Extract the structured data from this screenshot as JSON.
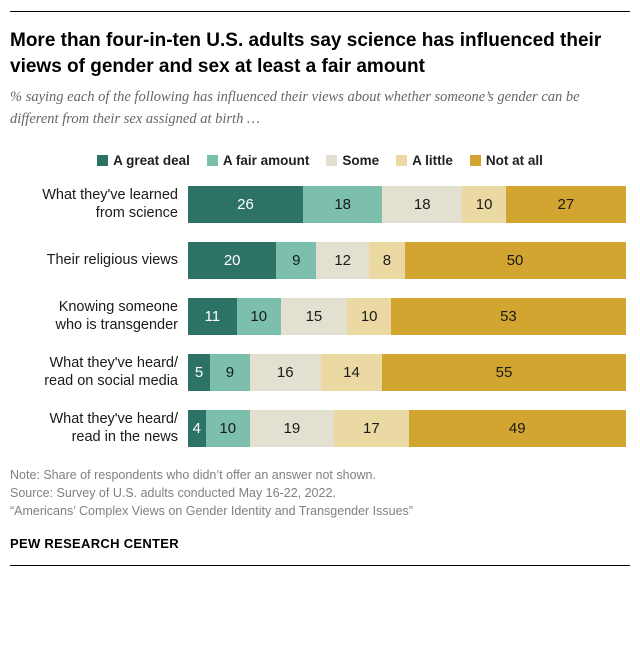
{
  "header": {
    "title": "More than four-in-ten U.S. adults say science has influenced their views of gender and sex at least a fair amount",
    "subtitle": "% saying each of the following has influenced their views about whether someone’s gender can be different from their sex assigned at birth …"
  },
  "chart_data": {
    "type": "bar",
    "stacked": true,
    "orientation": "horizontal",
    "unit": "%",
    "value_labels": "inside",
    "legend_position": "top",
    "categories": [
      "What they've learned from science",
      "Their religious views",
      "Knowing someone who is transgender",
      "What they've heard/ read on social media",
      "What they've heard/ read in the news"
    ],
    "category_lines": [
      [
        "What they've learned",
        "from science"
      ],
      [
        "Their religious views"
      ],
      [
        "Knowing someone",
        "who is transgender"
      ],
      [
        "What they've heard/",
        "read on social media"
      ],
      [
        "What they've heard/",
        "read in the news"
      ]
    ],
    "series": [
      {
        "name": "A great deal",
        "color": "#2d7365",
        "label_color": "#ffffff",
        "values": [
          26,
          20,
          11,
          5,
          4
        ]
      },
      {
        "name": "A fair amount",
        "color": "#7bbfac",
        "label_color": "#1a1a1a",
        "values": [
          18,
          9,
          10,
          9,
          10
        ]
      },
      {
        "name": "Some",
        "color": "#e3e0d1",
        "label_color": "#1a1a1a",
        "values": [
          18,
          12,
          15,
          16,
          19
        ]
      },
      {
        "name": "A little",
        "color": "#ead9a3",
        "label_color": "#1a1a1a",
        "values": [
          10,
          8,
          10,
          14,
          17
        ]
      },
      {
        "name": "Not at all",
        "color": "#d1a52f",
        "label_color": "#1a1a1a",
        "values": [
          27,
          50,
          53,
          55,
          49
        ]
      }
    ]
  },
  "footer": {
    "note": "Note: Share of respondents who didn’t offer an answer not shown.",
    "source": "Source: Survey of U.S. adults conducted May 16-22, 2022.",
    "report": "“Americans’ Complex Views on Gender Identity and Transgender Issues”",
    "brand": "PEW RESEARCH CENTER"
  }
}
